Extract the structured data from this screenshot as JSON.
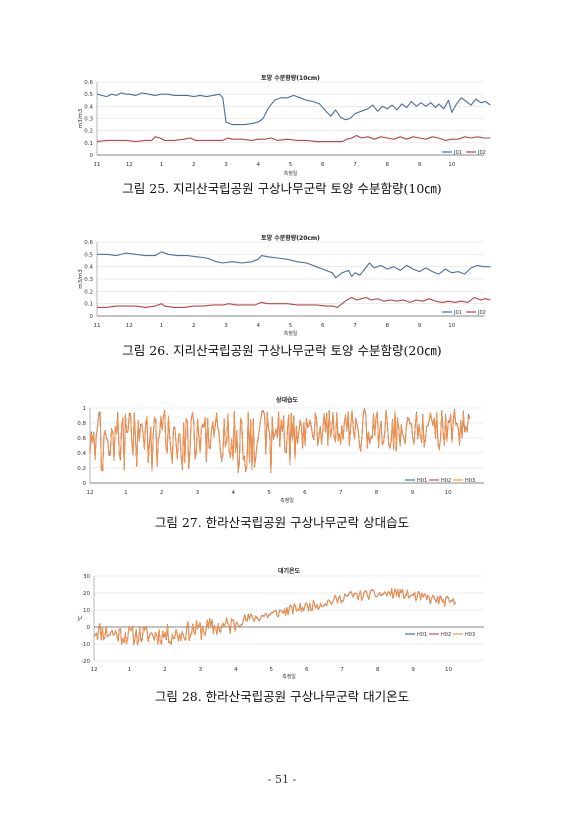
{
  "page": {
    "number": "- 51 -"
  },
  "chart_data": [
    {
      "type": "line",
      "title": "토양 수분함량(10cm)",
      "xlabel": "측정일",
      "ylabel": "m3/m3",
      "ylim": [
        0,
        0.6
      ],
      "yticks": [
        "0",
        "0.1",
        "0.2",
        "0.3",
        "0.4",
        "0.5",
        "0.6"
      ],
      "xticks": [
        "11",
        "12",
        "1",
        "2",
        "3",
        "4",
        "5",
        "6",
        "7",
        "8",
        "9",
        "10"
      ],
      "grid": true,
      "legend": "bottom-right",
      "caption": "그림 25. 지리산국립공원 구상나무군락 토양 수분함량(10㎝)",
      "series": [
        {
          "name": "J01",
          "color": "#4a6fa5",
          "values": [
            [
              0,
              0.5
            ],
            [
              0.15,
              0.49
            ],
            [
              0.3,
              0.48
            ],
            [
              0.45,
              0.5
            ],
            [
              0.6,
              0.49
            ],
            [
              0.75,
              0.51
            ],
            [
              0.9,
              0.5
            ],
            [
              1,
              0.5
            ],
            [
              1.2,
              0.49
            ],
            [
              1.4,
              0.51
            ],
            [
              1.6,
              0.5
            ],
            [
              1.8,
              0.49
            ],
            [
              2,
              0.5
            ],
            [
              2.2,
              0.5
            ],
            [
              2.4,
              0.49
            ],
            [
              2.6,
              0.49
            ],
            [
              2.8,
              0.49
            ],
            [
              3,
              0.48
            ],
            [
              3.2,
              0.49
            ],
            [
              3.4,
              0.48
            ],
            [
              3.6,
              0.49
            ],
            [
              3.8,
              0.5
            ],
            [
              3.9,
              0.47
            ],
            [
              4,
              0.27
            ],
            [
              4.2,
              0.25
            ],
            [
              4.4,
              0.25
            ],
            [
              4.6,
              0.25
            ],
            [
              4.8,
              0.26
            ],
            [
              5,
              0.27
            ],
            [
              5.15,
              0.3
            ],
            [
              5.3,
              0.38
            ],
            [
              5.5,
              0.45
            ],
            [
              5.7,
              0.47
            ],
            [
              5.9,
              0.47
            ],
            [
              6.1,
              0.49
            ],
            [
              6.3,
              0.47
            ],
            [
              6.5,
              0.45
            ],
            [
              6.7,
              0.44
            ],
            [
              6.9,
              0.42
            ],
            [
              7.1,
              0.36
            ],
            [
              7.25,
              0.32
            ],
            [
              7.4,
              0.37
            ],
            [
              7.55,
              0.31
            ],
            [
              7.7,
              0.29
            ],
            [
              7.85,
              0.3
            ],
            [
              8,
              0.34
            ],
            [
              8.2,
              0.36
            ],
            [
              8.4,
              0.38
            ],
            [
              8.55,
              0.41
            ],
            [
              8.7,
              0.36
            ],
            [
              8.85,
              0.4
            ],
            [
              9,
              0.38
            ],
            [
              9.15,
              0.41
            ],
            [
              9.3,
              0.37
            ],
            [
              9.45,
              0.42
            ],
            [
              9.6,
              0.39
            ],
            [
              9.75,
              0.44
            ],
            [
              9.9,
              0.4
            ],
            [
              10.05,
              0.43
            ],
            [
              10.2,
              0.4
            ],
            [
              10.35,
              0.43
            ],
            [
              10.5,
              0.39
            ],
            [
              10.6,
              0.42
            ],
            [
              10.75,
              0.38
            ],
            [
              10.9,
              0.45
            ],
            [
              11,
              0.35
            ],
            [
              11.15,
              0.42
            ],
            [
              11.3,
              0.47
            ],
            [
              11.45,
              0.44
            ],
            [
              11.6,
              0.41
            ],
            [
              11.75,
              0.46
            ],
            [
              11.9,
              0.43
            ],
            [
              12.05,
              0.44
            ],
            [
              12.2,
              0.41
            ]
          ]
        },
        {
          "name": "J02",
          "color": "#b94343",
          "values": [
            [
              0,
              0.11
            ],
            [
              0.3,
              0.12
            ],
            [
              0.6,
              0.12
            ],
            [
              0.9,
              0.12
            ],
            [
              1.2,
              0.11
            ],
            [
              1.5,
              0.12
            ],
            [
              1.7,
              0.12
            ],
            [
              1.8,
              0.15
            ],
            [
              1.95,
              0.14
            ],
            [
              2.1,
              0.12
            ],
            [
              2.4,
              0.12
            ],
            [
              2.7,
              0.13
            ],
            [
              2.9,
              0.14
            ],
            [
              3.05,
              0.12
            ],
            [
              3.3,
              0.12
            ],
            [
              3.6,
              0.12
            ],
            [
              3.9,
              0.12
            ],
            [
              4.05,
              0.14
            ],
            [
              4.2,
              0.13
            ],
            [
              4.5,
              0.13
            ],
            [
              4.8,
              0.12
            ],
            [
              5,
              0.13
            ],
            [
              5.2,
              0.13
            ],
            [
              5.4,
              0.14
            ],
            [
              5.6,
              0.12
            ],
            [
              5.9,
              0.13
            ],
            [
              6.2,
              0.12
            ],
            [
              6.5,
              0.12
            ],
            [
              6.8,
              0.11
            ],
            [
              7.1,
              0.11
            ],
            [
              7.4,
              0.11
            ],
            [
              7.6,
              0.11
            ],
            [
              7.75,
              0.13
            ],
            [
              7.9,
              0.14
            ],
            [
              8.05,
              0.16
            ],
            [
              8.2,
              0.14
            ],
            [
              8.4,
              0.15
            ],
            [
              8.6,
              0.13
            ],
            [
              8.8,
              0.15
            ],
            [
              9,
              0.14
            ],
            [
              9.2,
              0.13
            ],
            [
              9.4,
              0.15
            ],
            [
              9.6,
              0.13
            ],
            [
              9.8,
              0.15
            ],
            [
              10,
              0.14
            ],
            [
              10.2,
              0.13
            ],
            [
              10.4,
              0.15
            ],
            [
              10.6,
              0.14
            ],
            [
              10.8,
              0.12
            ],
            [
              11,
              0.13
            ],
            [
              11.2,
              0.13
            ],
            [
              11.4,
              0.15
            ],
            [
              11.6,
              0.14
            ],
            [
              11.8,
              0.15
            ],
            [
              12,
              0.14
            ],
            [
              12.2,
              0.14
            ]
          ]
        }
      ]
    },
    {
      "type": "line",
      "title": "토양 수분함량(20cm)",
      "xlabel": "측정일",
      "ylabel": "m3/m3",
      "ylim": [
        0,
        0.6
      ],
      "yticks": [
        "0",
        "0.1",
        "0.2",
        "0.3",
        "0.4",
        "0.5",
        "0.6"
      ],
      "xticks": [
        "11",
        "12",
        "1",
        "2",
        "3",
        "4",
        "5",
        "6",
        "7",
        "8",
        "9",
        "10"
      ],
      "grid": true,
      "legend": "bottom-right",
      "caption": "그림 26. 지리산국립공원 구상나무군락 토양 수분함량(20㎝)",
      "series": [
        {
          "name": "J01",
          "color": "#4a6fa5",
          "values": [
            [
              0,
              0.5
            ],
            [
              0.3,
              0.5
            ],
            [
              0.6,
              0.49
            ],
            [
              0.9,
              0.51
            ],
            [
              1.2,
              0.5
            ],
            [
              1.5,
              0.49
            ],
            [
              1.8,
              0.49
            ],
            [
              2,
              0.52
            ],
            [
              2.2,
              0.5
            ],
            [
              2.5,
              0.49
            ],
            [
              2.8,
              0.49
            ],
            [
              3.1,
              0.48
            ],
            [
              3.4,
              0.47
            ],
            [
              3.7,
              0.44
            ],
            [
              3.9,
              0.43
            ],
            [
              4.2,
              0.44
            ],
            [
              4.5,
              0.43
            ],
            [
              4.8,
              0.44
            ],
            [
              5,
              0.46
            ],
            [
              5.1,
              0.49
            ],
            [
              5.3,
              0.48
            ],
            [
              5.6,
              0.47
            ],
            [
              5.9,
              0.46
            ],
            [
              6.2,
              0.44
            ],
            [
              6.5,
              0.43
            ],
            [
              6.8,
              0.4
            ],
            [
              7.1,
              0.37
            ],
            [
              7.3,
              0.35
            ],
            [
              7.4,
              0.31
            ],
            [
              7.6,
              0.35
            ],
            [
              7.8,
              0.37
            ],
            [
              7.9,
              0.32
            ],
            [
              8,
              0.35
            ],
            [
              8.15,
              0.33
            ],
            [
              8.3,
              0.38
            ],
            [
              8.45,
              0.43
            ],
            [
              8.6,
              0.39
            ],
            [
              8.8,
              0.41
            ],
            [
              9,
              0.38
            ],
            [
              9.2,
              0.4
            ],
            [
              9.4,
              0.37
            ],
            [
              9.6,
              0.41
            ],
            [
              9.8,
              0.38
            ],
            [
              10,
              0.36
            ],
            [
              10.2,
              0.39
            ],
            [
              10.4,
              0.36
            ],
            [
              10.6,
              0.34
            ],
            [
              10.8,
              0.38
            ],
            [
              11,
              0.35
            ],
            [
              11.2,
              0.36
            ],
            [
              11.4,
              0.34
            ],
            [
              11.6,
              0.39
            ],
            [
              11.8,
              0.41
            ],
            [
              12,
              0.4
            ],
            [
              12.2,
              0.4
            ]
          ]
        },
        {
          "name": "J02",
          "color": "#b94343",
          "values": [
            [
              0,
              0.07
            ],
            [
              0.3,
              0.07
            ],
            [
              0.6,
              0.08
            ],
            [
              0.9,
              0.08
            ],
            [
              1.2,
              0.08
            ],
            [
              1.5,
              0.07
            ],
            [
              1.8,
              0.08
            ],
            [
              2,
              0.1
            ],
            [
              2.1,
              0.08
            ],
            [
              2.4,
              0.07
            ],
            [
              2.7,
              0.07
            ],
            [
              3,
              0.08
            ],
            [
              3.3,
              0.08
            ],
            [
              3.6,
              0.09
            ],
            [
              3.9,
              0.09
            ],
            [
              4.1,
              0.1
            ],
            [
              4.3,
              0.09
            ],
            [
              4.6,
              0.09
            ],
            [
              4.9,
              0.09
            ],
            [
              5.1,
              0.11
            ],
            [
              5.3,
              0.1
            ],
            [
              5.6,
              0.1
            ],
            [
              5.9,
              0.1
            ],
            [
              6.2,
              0.09
            ],
            [
              6.5,
              0.09
            ],
            [
              6.8,
              0.09
            ],
            [
              7.1,
              0.08
            ],
            [
              7.3,
              0.08
            ],
            [
              7.45,
              0.07
            ],
            [
              7.6,
              0.1
            ],
            [
              7.75,
              0.13
            ],
            [
              7.9,
              0.15
            ],
            [
              8.05,
              0.13
            ],
            [
              8.2,
              0.14
            ],
            [
              8.35,
              0.15
            ],
            [
              8.5,
              0.13
            ],
            [
              8.7,
              0.14
            ],
            [
              8.9,
              0.12
            ],
            [
              9.1,
              0.13
            ],
            [
              9.3,
              0.12
            ],
            [
              9.5,
              0.13
            ],
            [
              9.7,
              0.11
            ],
            [
              9.9,
              0.13
            ],
            [
              10.1,
              0.12
            ],
            [
              10.3,
              0.14
            ],
            [
              10.5,
              0.12
            ],
            [
              10.7,
              0.11
            ],
            [
              10.9,
              0.12
            ],
            [
              11.1,
              0.11
            ],
            [
              11.3,
              0.12
            ],
            [
              11.5,
              0.11
            ],
            [
              11.7,
              0.15
            ],
            [
              11.9,
              0.13
            ],
            [
              12.05,
              0.14
            ],
            [
              12.2,
              0.13
            ]
          ]
        }
      ]
    },
    {
      "type": "line",
      "title": "상대습도",
      "xlabel": "측정일",
      "ylabel": "",
      "ylim": [
        0,
        1
      ],
      "yticks": [
        "0",
        "0.2",
        "0.4",
        "0.6",
        "0.8",
        "1"
      ],
      "xticks": [
        "12",
        "1",
        "2",
        "3",
        "4",
        "5",
        "6",
        "7",
        "8",
        "9",
        "10"
      ],
      "grid": true,
      "legend": "bottom-right",
      "caption": "그림 27. 한라산국립공원 구상나무군락 상대습도",
      "series": [
        {
          "name": "H01",
          "color": "#4a6fa5"
        },
        {
          "name": "H02",
          "color": "#c0504d"
        },
        {
          "name": "H03",
          "color": "#f79646"
        }
      ]
    },
    {
      "type": "line",
      "title": "대기온도",
      "xlabel": "측정일",
      "ylabel": "℃",
      "ylim": [
        -20,
        30
      ],
      "yticks": [
        "-20",
        "-10",
        "0",
        "10",
        "20",
        "30"
      ],
      "xticks": [
        "12",
        "1",
        "2",
        "3",
        "4",
        "5",
        "6",
        "7",
        "8",
        "9",
        "10"
      ],
      "grid": true,
      "legend": "bottom-right",
      "caption": "그림 28. 한라산국립공원 구상나무군락 대기온도",
      "series": [
        {
          "name": "H01",
          "color": "#4a6fa5"
        },
        {
          "name": "H02",
          "color": "#c0504d"
        },
        {
          "name": "H03",
          "color": "#f79646"
        }
      ]
    }
  ]
}
